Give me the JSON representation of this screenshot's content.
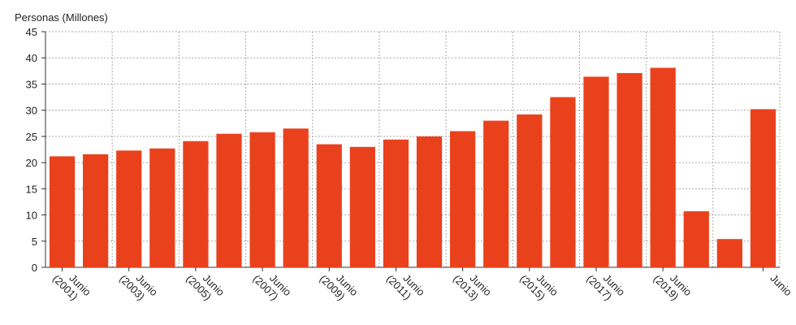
{
  "chart_data": {
    "type": "bar",
    "title": "Personas (Millones)",
    "categories": [
      "Junio (2001)",
      null,
      "Junio (2003)",
      null,
      "Junio (2005)",
      null,
      "Junio (2007)",
      null,
      "Junio (2009)",
      null,
      "Junio (2011)",
      null,
      "Junio (2013)",
      null,
      "Junio (2015)",
      null,
      "Junio (2017)",
      null,
      "Junio (2019)",
      null,
      null,
      "Junio"
    ],
    "values": [
      21.2,
      21.6,
      22.3,
      22.7,
      24.1,
      25.5,
      25.8,
      26.5,
      23.5,
      23.0,
      24.4,
      25.0,
      26.0,
      28.0,
      29.2,
      32.5,
      36.4,
      37.1,
      38.1,
      10.7,
      5.4,
      30.2
    ],
    "color": "#ea411d",
    "ylim": [
      0,
      45
    ],
    "yticks": [
      0,
      5,
      10,
      15,
      20,
      25,
      30,
      35,
      40,
      45
    ],
    "grid": true
  }
}
